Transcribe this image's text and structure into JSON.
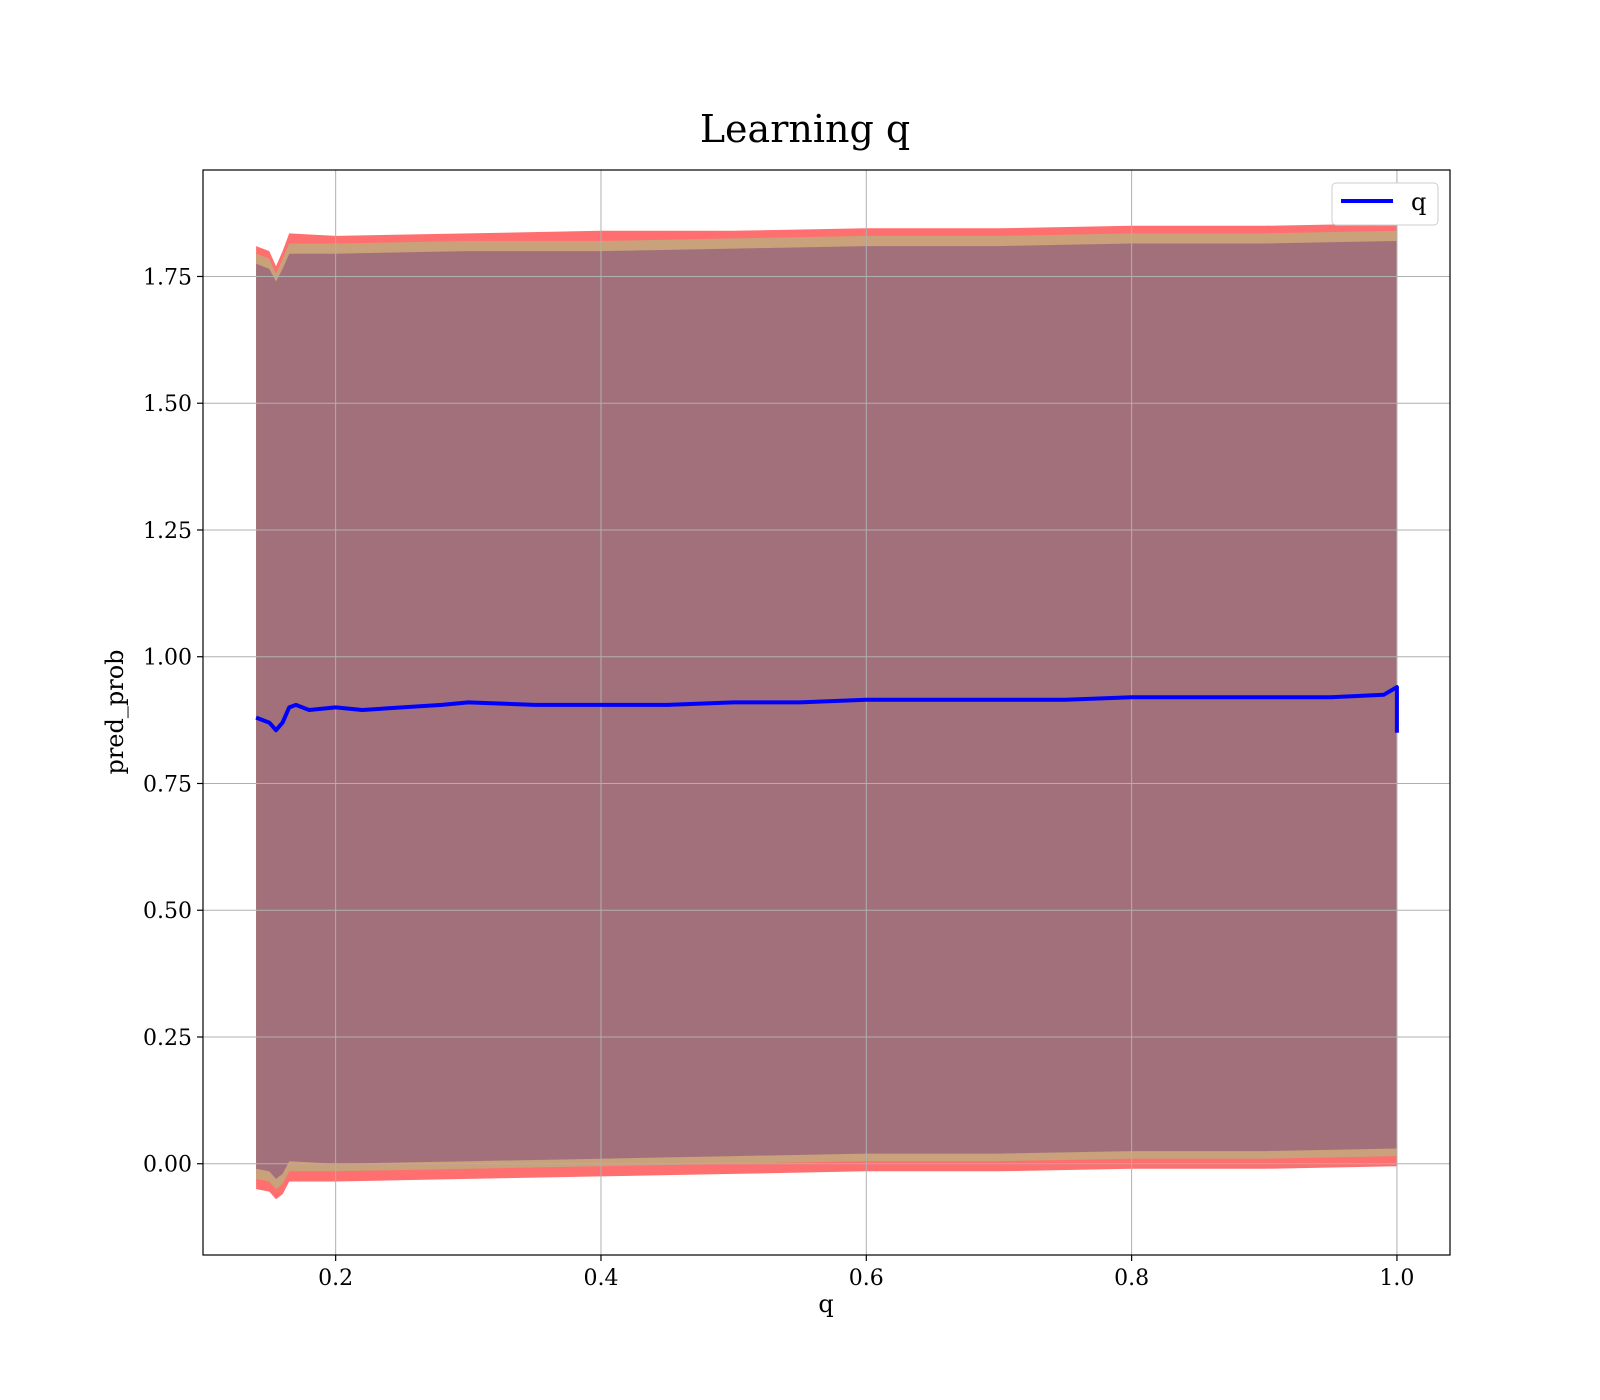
{
  "chart_data": {
    "type": "line",
    "title": "Learning q",
    "xlabel": "q",
    "ylabel": "pred_prob",
    "xlim": [
      0.1,
      1.04
    ],
    "ylim": [
      -0.18,
      1.96
    ],
    "x_ticks": [
      0.2,
      0.4,
      0.6,
      0.8,
      1.0
    ],
    "x_tick_labels": [
      "0.2",
      "0.4",
      "0.6",
      "0.8",
      "1.0"
    ],
    "y_ticks": [
      0.0,
      0.25,
      0.5,
      0.75,
      1.0,
      1.25,
      1.5,
      1.75
    ],
    "y_tick_labels": [
      "0.00",
      "0.25",
      "0.50",
      "0.75",
      "1.00",
      "1.25",
      "1.50",
      "1.75"
    ],
    "grid": true,
    "legend": {
      "position": "top-right",
      "entries": [
        "q"
      ]
    },
    "colors": {
      "line": "#0000ff",
      "band_outer": "#ff6f6f",
      "band_middle": "#c9a17a",
      "band_inner": "#a2707a",
      "grid": "#b0b0b0"
    },
    "series": [
      {
        "name": "q",
        "x": [
          0.14,
          0.145,
          0.15,
          0.155,
          0.16,
          0.165,
          0.17,
          0.18,
          0.2,
          0.22,
          0.25,
          0.28,
          0.3,
          0.35,
          0.4,
          0.45,
          0.5,
          0.55,
          0.6,
          0.65,
          0.7,
          0.75,
          0.8,
          0.85,
          0.9,
          0.95,
          0.99,
          1.0,
          1.0
        ],
        "y": [
          0.88,
          0.875,
          0.87,
          0.855,
          0.87,
          0.9,
          0.905,
          0.895,
          0.9,
          0.895,
          0.9,
          0.905,
          0.91,
          0.905,
          0.905,
          0.905,
          0.91,
          0.91,
          0.915,
          0.915,
          0.915,
          0.915,
          0.92,
          0.92,
          0.92,
          0.92,
          0.925,
          0.94,
          0.85
        ]
      }
    ],
    "band": {
      "x": [
        0.14,
        0.15,
        0.155,
        0.16,
        0.165,
        0.2,
        0.3,
        0.4,
        0.5,
        0.6,
        0.7,
        0.8,
        0.9,
        1.0
      ],
      "upper_outer": [
        1.81,
        1.8,
        1.77,
        1.8,
        1.835,
        1.83,
        1.835,
        1.84,
        1.84,
        1.845,
        1.845,
        1.85,
        1.85,
        1.855
      ],
      "upper_middle": [
        1.795,
        1.785,
        1.755,
        1.785,
        1.815,
        1.815,
        1.82,
        1.82,
        1.825,
        1.83,
        1.83,
        1.835,
        1.835,
        1.84
      ],
      "upper_inner": [
        1.775,
        1.765,
        1.74,
        1.765,
        1.795,
        1.795,
        1.8,
        1.8,
        1.805,
        1.81,
        1.81,
        1.815,
        1.815,
        1.82
      ],
      "lower_inner": [
        -0.01,
        -0.015,
        -0.03,
        -0.02,
        0.005,
        0.0,
        0.005,
        0.01,
        0.015,
        0.02,
        0.02,
        0.025,
        0.025,
        0.03
      ],
      "lower_middle": [
        -0.03,
        -0.035,
        -0.05,
        -0.04,
        -0.015,
        -0.015,
        -0.01,
        -0.005,
        0.0,
        0.005,
        0.005,
        0.01,
        0.01,
        0.015
      ],
      "lower_outer": [
        -0.05,
        -0.055,
        -0.07,
        -0.06,
        -0.035,
        -0.035,
        -0.03,
        -0.025,
        -0.02,
        -0.015,
        -0.015,
        -0.01,
        -0.01,
        -0.005
      ]
    }
  }
}
